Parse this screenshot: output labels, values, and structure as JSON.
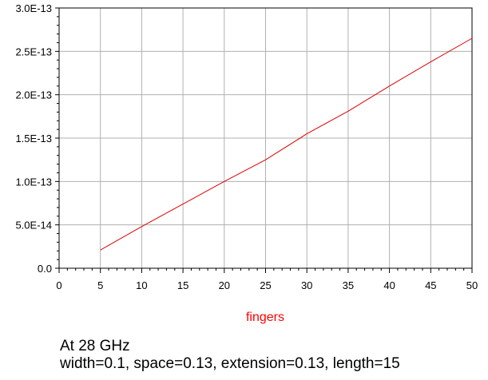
{
  "chart_data": {
    "type": "line",
    "x": [
      5,
      10,
      15,
      20,
      25,
      30,
      35,
      40,
      45,
      50
    ],
    "series": [
      {
        "values": [
          2.1e-14,
          4.8e-14,
          7.4e-14,
          1e-13,
          1.25e-13,
          1.55e-13,
          1.81e-13,
          2.1e-13,
          2.38e-13,
          2.65e-13
        ]
      }
    ],
    "xlabel": "fingers",
    "ylabel": "",
    "xlim": [
      0,
      50
    ],
    "ylim": [
      0,
      3e-13
    ],
    "x_ticks": [
      "0",
      "5",
      "10",
      "15",
      "20",
      "25",
      "30",
      "35",
      "40",
      "45",
      "50"
    ],
    "y_ticks": [
      "0.0",
      "5.0E-14",
      "1.0E-13",
      "1.5E-13",
      "2.0E-13",
      "2.5E-13",
      "3.0E-13"
    ],
    "grid": true,
    "colors": {
      "line": "#dd0000",
      "grid": "#b0b0b0",
      "axis": "#000000",
      "xlabel": "#ff0000"
    }
  },
  "caption": {
    "line1": "At 28 GHz",
    "line2": "width=0.1, space=0.13, extension=0.13, length=15"
  }
}
